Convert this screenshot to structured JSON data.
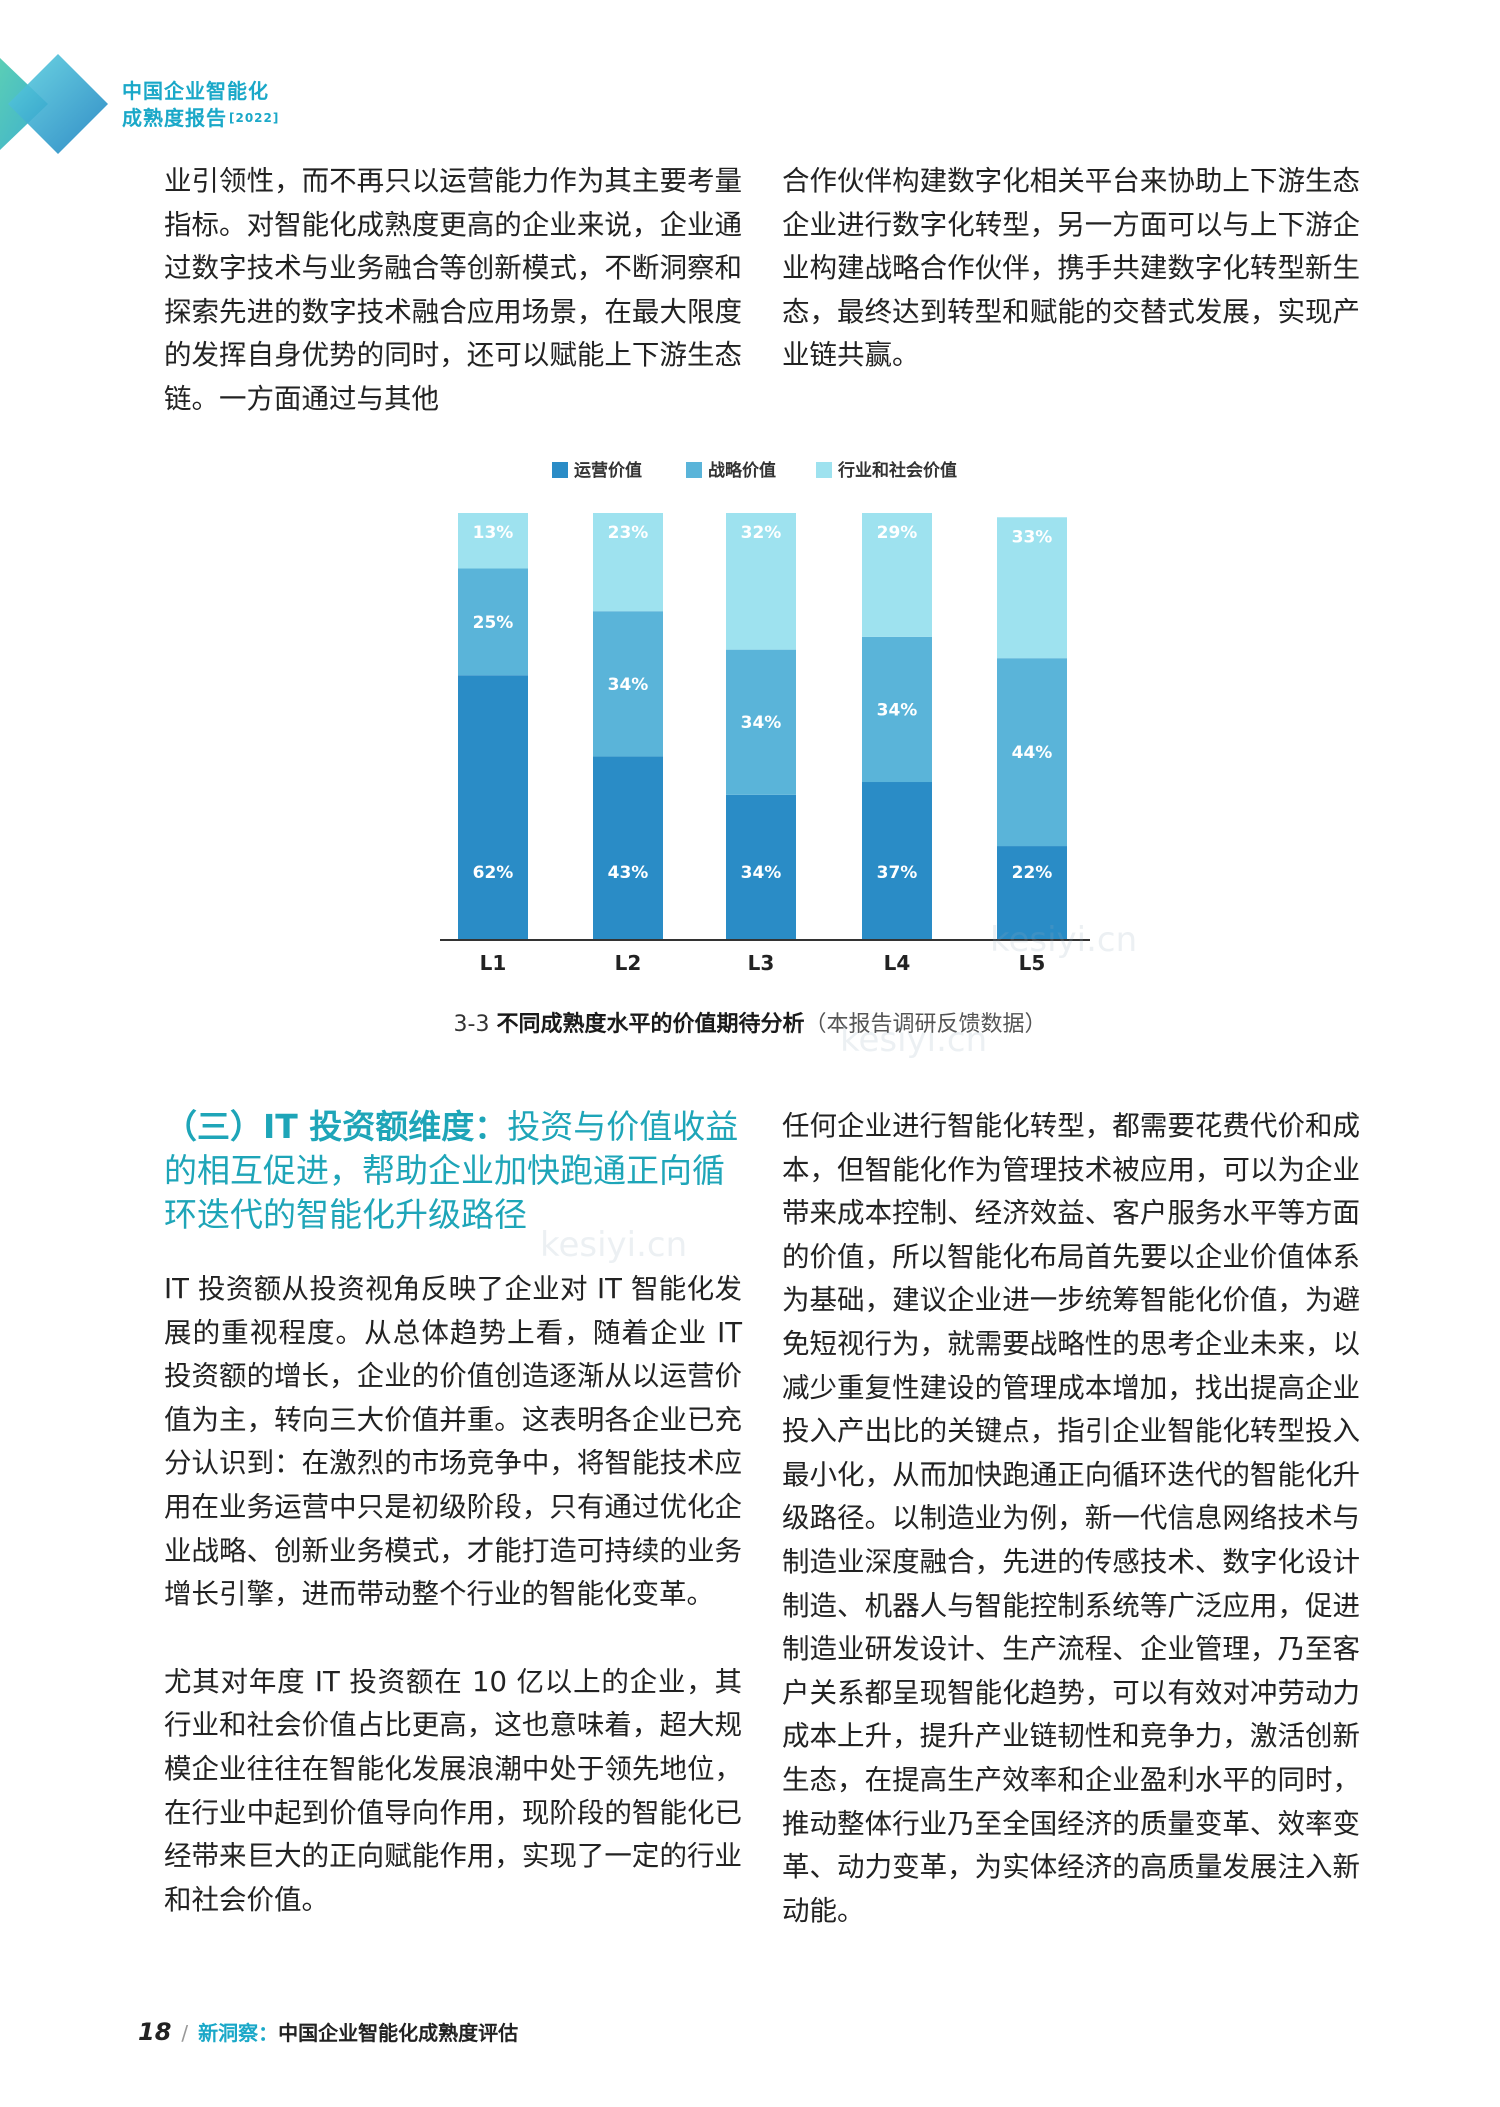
{
  "header": {
    "title_line1": "中国企业智能化",
    "title_line2": "成熟度报告",
    "year": "[2022]"
  },
  "top_left_paragraph": "业引领性，而不再只以运营能力作为其主要考量指标。对智能化成熟度更高的企业来说，企业通过数字技术与业务融合等创新模式，不断洞察和探索先进的数字技术融合应用场景，在最大限度的发挥自身优势的同时，还可以赋能上下游生态链。一方面通过与其他",
  "top_right_paragraph": "合作伙伴构建数字化相关平台来协助上下游生态企业进行数字化转型，另一方面可以与上下游企业构建战略合作伙伴，携手共建数字化转型新生态，最终达到转型和赋能的交替式发展，实现产业链共赢。",
  "chart_data": {
    "type": "bar",
    "stacked": true,
    "percent": true,
    "categories": [
      "L1",
      "L2",
      "L3",
      "L4",
      "L5"
    ],
    "series": [
      {
        "name": "运营价值",
        "values": [
          62,
          43,
          34,
          37,
          22
        ],
        "labels": [
          "62%",
          "43%",
          "34%",
          "37%",
          "22%"
        ],
        "color": "#2a8cc6"
      },
      {
        "name": "战略价值",
        "values": [
          25,
          34,
          34,
          34,
          44
        ],
        "labels": [
          "25%",
          "34%",
          "34%",
          "34%",
          "44%"
        ],
        "color": "#5ab4d9"
      },
      {
        "name": "行业和社会价值",
        "values": [
          13,
          23,
          32,
          29,
          33
        ],
        "labels": [
          "13%",
          "23%",
          "32%",
          "29%",
          "33%"
        ],
        "color": "#9ee2ef"
      }
    ],
    "ylim": [
      0,
      100
    ],
    "title": "",
    "xlabel": "",
    "ylabel": "",
    "legend_position": "top-center"
  },
  "caption": {
    "number": "3-3",
    "title": "不同成熟度水平的价值期待分析",
    "note": "（本报告调研反馈数据）"
  },
  "section": {
    "heading_bold": "（三）IT 投资额维度：",
    "heading_rest": "投资与价值收益的相互促进，帮助企业加快跑通正向循环迭代的智能化升级路径"
  },
  "left_paragraphs": [
    "IT 投资额从投资视角反映了企业对 IT 智能化发展的重视程度。从总体趋势上看，随着企业 IT 投资额的增长，企业的价值创造逐渐从以运营价值为主，转向三大价值并重。这表明各企业已充分认识到：在激烈的市场竞争中，将智能技术应用在业务运营中只是初级阶段，只有通过优化企业战略、创新业务模式，才能打造可持续的业务增长引擎，进而带动整个行业的智能化变革。",
    "尤其对年度 IT 投资额在 10 亿以上的企业，其行业和社会价值占比更高，这也意味着，超大规模企业往往在智能化发展浪潮中处于领先地位，在行业中起到价值导向作用，现阶段的智能化已经带来巨大的正向赋能作用，实现了一定的行业和社会价值。"
  ],
  "right_paragraph": "任何企业进行智能化转型，都需要花费代价和成本，但智能化作为管理技术被应用，可以为企业带来成本控制、经济效益、客户服务水平等方面的价值，所以智能化布局首先要以企业价值体系为基础，建议企业进一步统筹智能化价值，为避免短视行为，就需要战略性的思考企业未来，以减少重复性建设的管理成本增加，找出提高企业投入产出比的关键点，指引企业智能化转型投入最小化，从而加快跑通正向循环迭代的智能化升级路径。以制造业为例，新一代信息网络技术与制造业深度融合，先进的传感技术、数字化设计制造、机器人与智能控制系统等广泛应用，促进制造业研发设计、生产流程、企业管理，乃至客户关系都呈现智能化趋势，可以有效对冲劳动力成本上升，提升产业链韧性和竞争力，激活创新生态，在提高生产效率和企业盈利水平的同时，推动整体行业乃至全国经济的质量变革、效率变革、动力变革，为实体经济的高质量发展注入新动能。",
  "footer": {
    "page_number": "18",
    "column_name": "新洞察：",
    "chapter_title": "中国企业智能化成熟度评估"
  },
  "watermark": "kesiyi.cn"
}
